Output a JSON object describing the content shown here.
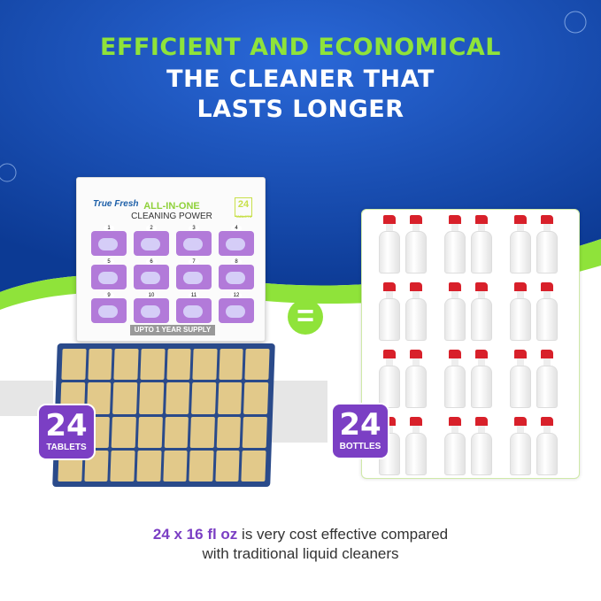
{
  "headline": {
    "line1": "EFFICIENT AND ECONOMICAL",
    "line2": "THE CLEANER THAT",
    "line3": "LASTS LONGER"
  },
  "box": {
    "logo": "True Fresh",
    "title1": "ALL-IN-ONE",
    "title2": "CLEANING POWER",
    "count": "24",
    "count_label": "TABLETS",
    "cells": [
      "1",
      "2",
      "3",
      "4",
      "5",
      "6",
      "7",
      "8",
      "9",
      "10",
      "11",
      "12"
    ],
    "supply": "UPTO 1 YEAR SUPPLY"
  },
  "equals": "=",
  "badge_tablets": {
    "number": "24",
    "label": "TABLETS"
  },
  "badge_bottles": {
    "number": "24",
    "label": "BOTTLES"
  },
  "footer": {
    "highlight": "24 x 16 fl oz",
    "line1_rest": " is very cost effective compared",
    "line2": "with traditional liquid cleaners"
  },
  "colors": {
    "blue": "#1a4fb0",
    "green": "#8fe33a",
    "purple": "#7b3fc4",
    "cap_red": "#d8202a"
  }
}
